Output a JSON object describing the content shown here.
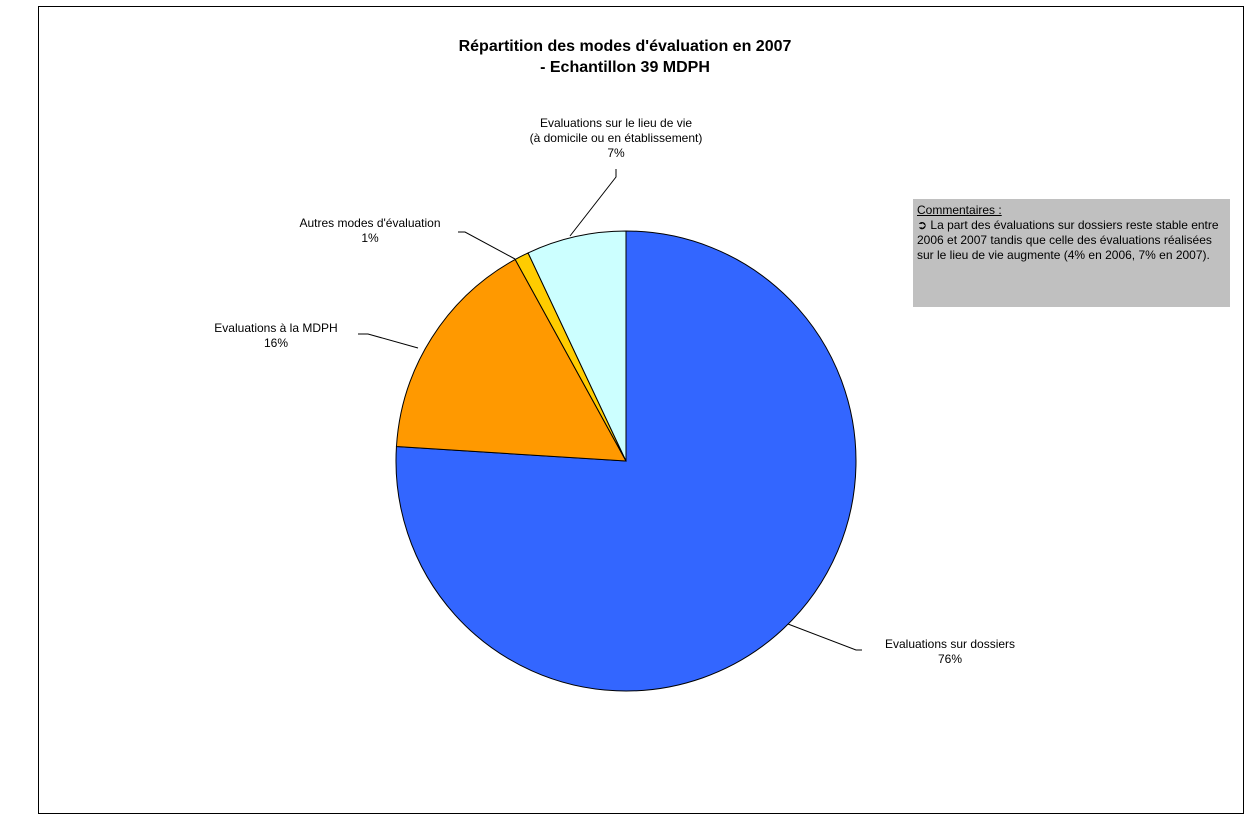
{
  "chart_data": {
    "type": "pie",
    "title_line1": "Répartition des modes d'évaluation en 2007",
    "title_line2": "- Echantillon 39 MDPH",
    "slices": [
      {
        "name": "Evaluations sur dossiers",
        "value": 76,
        "label": "76%",
        "color": "#3366ff"
      },
      {
        "name": "Evaluations à la MDPH",
        "value": 16,
        "label": "16%",
        "color": "#ff9900"
      },
      {
        "name": "Autres modes d'évaluation",
        "value": 1,
        "label": "1%",
        "color": "#ffcc00"
      },
      {
        "name_line1": "Evaluations sur le lieu de vie",
        "name_line2": "(à domicile ou en établissement)",
        "value": 7,
        "label": "7%",
        "color": "#ccffff"
      }
    ]
  },
  "comment": {
    "heading": "Commentaires :",
    "arrow": "➲",
    "text": "La part des évaluations sur dossiers reste stable entre 2006 et 2007 tandis que celle des évaluations réalisées sur le lieu de vie augmente (4% en 2006, 7% en 2007)."
  }
}
